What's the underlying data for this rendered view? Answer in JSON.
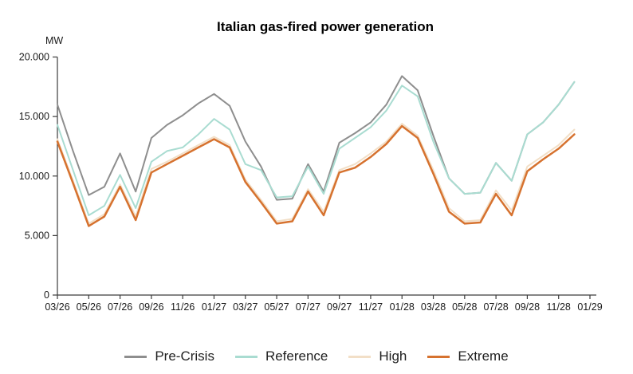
{
  "chart_data": {
    "type": "line",
    "title": "Italian gas-fired power generation",
    "y_axis_label": "MW",
    "ylim": [
      0,
      20000
    ],
    "grid": false,
    "legend_position": "bottom",
    "y_ticks": [
      {
        "value": 0,
        "label": "0"
      },
      {
        "value": 5000,
        "label": "5.000"
      },
      {
        "value": 10000,
        "label": "10.000"
      },
      {
        "value": 15000,
        "label": "15.000"
      },
      {
        "value": 20000,
        "label": "20.000"
      }
    ],
    "x_tick_labels": [
      "03/26",
      "05/26",
      "07/26",
      "09/26",
      "11/26",
      "01/27",
      "03/27",
      "05/27",
      "07/27",
      "09/27",
      "11/27",
      "01/28",
      "03/28",
      "05/28",
      "07/28",
      "09/28",
      "11/28",
      "01/29"
    ],
    "categories": [
      "03/26",
      "04/26",
      "05/26",
      "06/26",
      "07/26",
      "08/26",
      "09/26",
      "10/26",
      "11/26",
      "12/26",
      "01/27",
      "02/27",
      "03/27",
      "04/27",
      "05/27",
      "06/27",
      "07/27",
      "08/27",
      "09/27",
      "10/27",
      "11/27",
      "12/27",
      "01/28",
      "02/28",
      "03/28",
      "04/28",
      "05/28",
      "06/28",
      "07/28",
      "08/28",
      "09/28",
      "10/28",
      "11/28",
      "12/28"
    ],
    "series": [
      {
        "name": "Pre-Crisis",
        "color": "#8e8e8e",
        "line_width": 2,
        "values": [
          16000,
          12100,
          8400,
          9100,
          11900,
          8700,
          13200,
          14300,
          15100,
          16100,
          16900,
          15900,
          12900,
          10800,
          8000,
          8100,
          11000,
          8700,
          12800,
          13600,
          14500,
          16000,
          18400,
          17200,
          13400,
          9800,
          8500,
          8600,
          11100,
          9600,
          13500,
          14500,
          16000,
          17900
        ]
      },
      {
        "name": "Reference",
        "color": "#a9dcd1",
        "line_width": 2,
        "values": [
          14300,
          10500,
          6700,
          7500,
          10100,
          7300,
          11200,
          12100,
          12400,
          13500,
          14800,
          13900,
          11000,
          10500,
          8200,
          8300,
          10800,
          8500,
          12300,
          13200,
          14100,
          15500,
          17600,
          16700,
          12900,
          9800,
          8500,
          8600,
          11100,
          9600,
          13500,
          14500,
          16000,
          17900
        ]
      },
      {
        "name": "High",
        "color": "#f2dfc7",
        "line_width": 2,
        "values": [
          13100,
          9600,
          6000,
          6800,
          9300,
          6600,
          10600,
          11200,
          11900,
          12600,
          13300,
          12600,
          9700,
          8000,
          6200,
          6400,
          8900,
          7000,
          10500,
          11000,
          11900,
          12900,
          14400,
          13400,
          10500,
          7300,
          6200,
          6300,
          8800,
          7100,
          10800,
          11700,
          12600,
          13900
        ]
      },
      {
        "name": "Extreme",
        "color": "#d6722f",
        "line_width": 2.5,
        "values": [
          12900,
          9400,
          5800,
          6600,
          9100,
          6300,
          10300,
          11000,
          11700,
          12400,
          13100,
          12400,
          9500,
          7800,
          6000,
          6200,
          8700,
          6700,
          10300,
          10700,
          11600,
          12700,
          14200,
          13200,
          10200,
          7000,
          6000,
          6100,
          8500,
          6700,
          10400,
          11400,
          12300,
          13500
        ]
      }
    ]
  }
}
